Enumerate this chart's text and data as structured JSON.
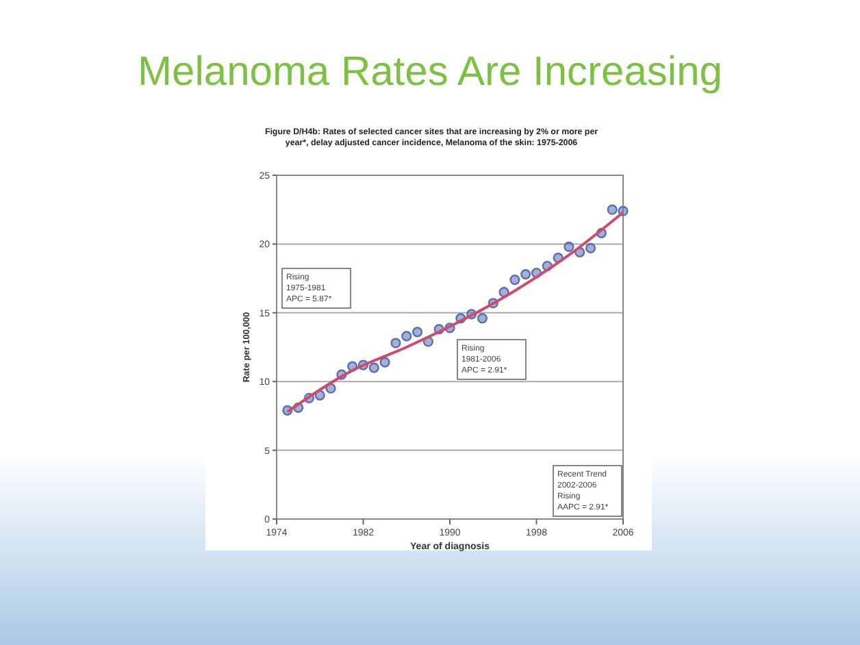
{
  "chart_data": {
    "type": "scatter",
    "title": "Melanoma Rates Are Increasing",
    "subtitle": "Figure D/H4b: Rates of selected cancer sites that are increasing by 2% or more per year*, delay adjusted cancer incidence, Melanoma of the skin: 1975-2006",
    "xlabel": "Year of diagnosis",
    "ylabel": "Rate per 100,000",
    "series": [
      {
        "color": "#5a6db5",
        "x": [
          1975,
          1976,
          1977,
          1978,
          1979,
          1980,
          1981,
          1982,
          1983,
          1984,
          1985,
          1986,
          1987,
          1988,
          1989,
          1990,
          1991,
          1992,
          1993,
          1994,
          1995,
          1996,
          1997,
          1998,
          1999,
          2000,
          2001,
          2002,
          2003,
          2004,
          2005,
          2006
        ],
        "values": [
          7.9,
          8.1,
          8.8,
          9.0,
          9.5,
          10.5,
          11.1,
          11.2,
          11.0,
          11.4,
          12.8,
          13.3,
          13.6,
          12.9,
          13.8,
          13.9,
          14.6,
          14.9,
          14.6,
          15.7,
          16.5,
          17.4,
          17.8,
          17.9,
          18.4,
          19.0,
          19.8,
          19.4,
          19.7,
          20.8,
          22.5,
          22.4
        ]
      },
      {
        "type": "line",
        "marker": "none",
        "color": "#d04a6a",
        "x": [
          1975,
          1981,
          1986,
          1991,
          1996,
          2001,
          2006
        ],
        "values": [
          7.8,
          10.8,
          12.5,
          14.4,
          16.6,
          19.2,
          22.3
        ]
      }
    ],
    "xlim": [
      1974,
      2006
    ],
    "xticks": [
      1974,
      1982,
      1990,
      1998,
      2006
    ],
    "ylim": [
      0,
      25
    ],
    "yticks": [
      0,
      5,
      10,
      15,
      20,
      25
    ],
    "grid": "y",
    "marker": "circle",
    "annotations": [
      "Rising\n1975-1981\nAPC = 5.87*",
      "Rising\n1981-2006\nAPC = 2.91*",
      "Recent Trend\n2002-2006\nRising\nAAPC = 2.91*"
    ]
  }
}
